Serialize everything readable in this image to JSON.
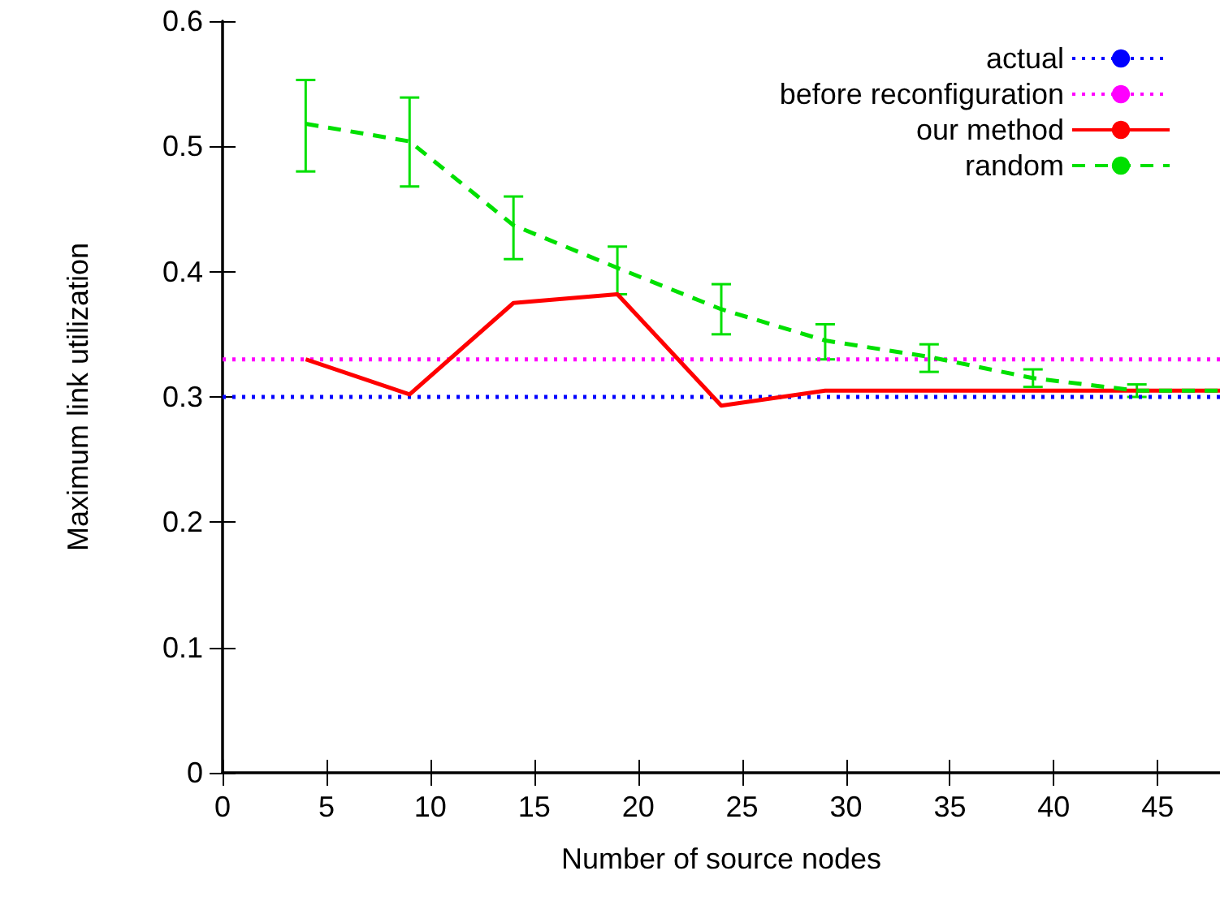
{
  "chart_data": {
    "type": "line",
    "xlabel": "Number of source nodes",
    "ylabel": "Maximum link utilization",
    "xlim": [
      0,
      48
    ],
    "xticks": [
      0,
      5,
      10,
      15,
      20,
      25,
      30,
      35,
      40,
      45
    ],
    "ylim": [
      0,
      0.6
    ],
    "yticks": [
      0,
      0.1,
      0.2,
      0.3,
      0.4,
      0.5,
      0.6
    ],
    "grid": false,
    "legend": "top right",
    "marker": "none",
    "series": [
      {
        "name": "actual",
        "color": "#0000ff",
        "line_style": "dotted",
        "x": [
          0,
          48
        ],
        "values": [
          0.3,
          0.3
        ]
      },
      {
        "name": "before reconfiguration",
        "color": "#ff00ff",
        "line_style": "dotted",
        "x": [
          0,
          48
        ],
        "values": [
          0.33,
          0.33
        ]
      },
      {
        "name": "our method",
        "color": "#ff0000",
        "line_style": "solid",
        "x": [
          4,
          9,
          14,
          19,
          24,
          29,
          34,
          39,
          44,
          48
        ],
        "values": [
          0.33,
          0.302,
          0.375,
          0.382,
          0.293,
          0.305,
          0.305,
          0.305,
          0.305,
          0.305
        ]
      },
      {
        "name": "random",
        "color": "#00e000",
        "line_style": "dashed",
        "x": [
          4,
          9,
          14,
          19,
          24,
          29,
          34,
          39,
          44,
          48
        ],
        "values": [
          0.518,
          0.504,
          0.437,
          0.403,
          0.37,
          0.345,
          0.332,
          0.315,
          0.305,
          0.305
        ],
        "errors": [
          [
            0.48,
            0.553
          ],
          [
            0.468,
            0.539
          ],
          [
            0.41,
            0.46
          ],
          [
            0.382,
            0.42
          ],
          [
            0.35,
            0.39
          ],
          [
            0.33,
            0.358
          ],
          [
            0.32,
            0.342
          ],
          [
            0.308,
            0.322
          ],
          [
            0.3,
            0.31
          ],
          null
        ]
      }
    ]
  }
}
